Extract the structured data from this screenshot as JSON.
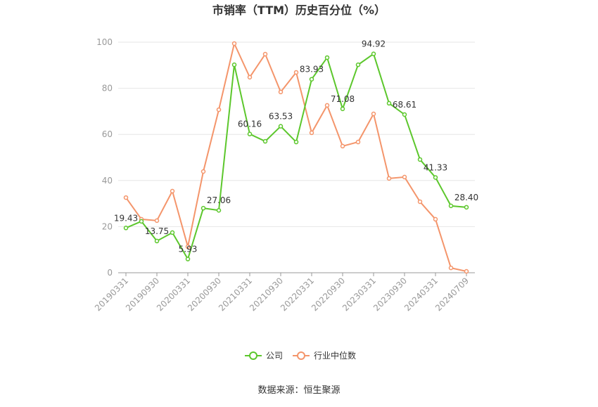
{
  "chart_data": {
    "type": "line",
    "title": "市销率（TTM）历史百分位（%）",
    "source": "数据来源：恒生聚源",
    "categories": [
      "20190331",
      null,
      "20190930",
      null,
      "20200331",
      null,
      "20200930",
      null,
      "20210331",
      null,
      "20210930",
      null,
      "20220331",
      null,
      "20220930",
      null,
      "20230331",
      null,
      "20230930",
      null,
      "20240331",
      null,
      "20240709"
    ],
    "series": [
      {
        "name": "公司",
        "color": "#5cc72c",
        "values": [
          19.43,
          22.3,
          13.75,
          17.4,
          5.93,
          28.0,
          27.06,
          90.2,
          60.16,
          57.0,
          63.53,
          56.7,
          83.93,
          93.3,
          71.08,
          90.2,
          94.92,
          73.5,
          68.61,
          49.1,
          41.33,
          29.0,
          28.4
        ],
        "value_labels": [
          "19.43",
          null,
          "13.75",
          null,
          "5.93",
          null,
          "27.06",
          null,
          "60.16",
          null,
          "63.53",
          null,
          "83.93",
          null,
          "71.08",
          null,
          "94.92",
          null,
          "68.61",
          null,
          "41.33",
          null,
          "28.40"
        ]
      },
      {
        "name": "行业中位数",
        "color": "#f4956b",
        "values": [
          32.6,
          23.2,
          22.6,
          35.4,
          11.3,
          43.9,
          70.7,
          99.4,
          84.8,
          94.8,
          78.4,
          86.9,
          60.7,
          72.6,
          54.9,
          56.7,
          68.9,
          40.9,
          41.5,
          30.8,
          23.2,
          2.1,
          0.6
        ]
      }
    ],
    "ylim": [
      0,
      100
    ],
    "yticks": [
      0,
      20,
      40,
      60,
      80,
      100
    ],
    "grid": true,
    "legend": "bottom"
  }
}
